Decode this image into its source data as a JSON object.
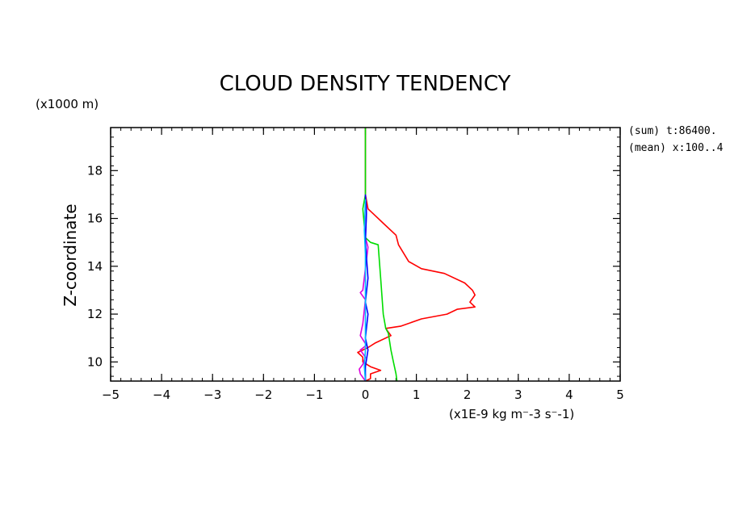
{
  "chart_data": {
    "type": "line",
    "title": "CLOUD DENSITY TENDENCY",
    "xlabel": "(x1E-9 kg m⁻-3 s⁻-1)",
    "ylabel": "Z-coordinate",
    "yunit": "(x1000 m)",
    "xlim": [
      -5,
      5
    ],
    "ylim": [
      9.2,
      19.8
    ],
    "xticks": [
      -5,
      -4,
      -3,
      -2,
      -1,
      0,
      1,
      2,
      3,
      4,
      5
    ],
    "yticks": [
      10,
      12,
      14,
      16,
      18
    ],
    "annotations": [
      "(sum) t:86400.",
      "(mean) x:100..4"
    ],
    "grid": false,
    "series": [
      {
        "color": "#ff0000",
        "points": [
          [
            0.0,
            19.8
          ],
          [
            0.0,
            17.0
          ],
          [
            0.05,
            16.4
          ],
          [
            0.15,
            16.2
          ],
          [
            0.35,
            15.8
          ],
          [
            0.6,
            15.3
          ],
          [
            0.65,
            14.9
          ],
          [
            0.85,
            14.2
          ],
          [
            1.1,
            13.9
          ],
          [
            1.55,
            13.7
          ],
          [
            1.95,
            13.3
          ],
          [
            2.1,
            13.0
          ],
          [
            2.15,
            12.8
          ],
          [
            2.05,
            12.5
          ],
          [
            2.15,
            12.3
          ],
          [
            1.8,
            12.2
          ],
          [
            1.6,
            12.0
          ],
          [
            1.1,
            11.8
          ],
          [
            0.7,
            11.5
          ],
          [
            0.4,
            11.4
          ],
          [
            0.5,
            11.1
          ],
          [
            0.2,
            10.8
          ],
          [
            0.05,
            10.6
          ],
          [
            -0.15,
            10.4
          ],
          [
            -0.05,
            10.2
          ],
          [
            -0.05,
            10.0
          ],
          [
            0.1,
            9.8
          ],
          [
            0.3,
            9.65
          ],
          [
            0.1,
            9.5
          ],
          [
            0.1,
            9.3
          ],
          [
            0.0,
            9.2
          ]
        ]
      },
      {
        "color": "#00dd00",
        "points": [
          [
            0.0,
            19.8
          ],
          [
            0.0,
            17.0
          ],
          [
            -0.05,
            16.4
          ],
          [
            0.0,
            15.2
          ],
          [
            0.1,
            15.0
          ],
          [
            0.25,
            14.9
          ],
          [
            0.3,
            13.5
          ],
          [
            0.35,
            12.0
          ],
          [
            0.4,
            11.4
          ],
          [
            0.45,
            11.2
          ],
          [
            0.5,
            10.5
          ],
          [
            0.55,
            10.0
          ],
          [
            0.6,
            9.5
          ],
          [
            0.62,
            9.2
          ]
        ]
      },
      {
        "color": "#dd00dd",
        "points": [
          [
            0.0,
            17.0
          ],
          [
            0.02,
            16.3
          ],
          [
            0.0,
            15.2
          ],
          [
            0.05,
            14.8
          ],
          [
            -0.05,
            13.0
          ],
          [
            -0.1,
            12.9
          ],
          [
            0.0,
            12.6
          ],
          [
            -0.05,
            11.6
          ],
          [
            -0.1,
            11.1
          ],
          [
            0.02,
            10.7
          ],
          [
            -0.1,
            10.5
          ],
          [
            0.0,
            10.2
          ],
          [
            -0.05,
            9.9
          ],
          [
            -0.12,
            9.7
          ],
          [
            -0.1,
            9.5
          ],
          [
            0.0,
            9.2
          ]
        ]
      },
      {
        "color": "#0000ff",
        "points": [
          [
            0.0,
            17.0
          ],
          [
            0.02,
            16.2
          ],
          [
            0.0,
            15.0
          ],
          [
            0.05,
            13.5
          ],
          [
            0.0,
            12.5
          ],
          [
            0.05,
            12.0
          ],
          [
            0.0,
            11.0
          ],
          [
            0.05,
            10.5
          ],
          [
            0.0,
            9.8
          ],
          [
            0.0,
            9.2
          ]
        ]
      },
      {
        "color": "#00bbff",
        "points": [
          [
            0.0,
            16.8
          ],
          [
            -0.02,
            15.5
          ],
          [
            0.0,
            14.5
          ],
          [
            0.0,
            12.0
          ],
          [
            0.0,
            10.5
          ],
          [
            -0.02,
            9.8
          ],
          [
            0.0,
            9.2
          ]
        ]
      }
    ]
  }
}
